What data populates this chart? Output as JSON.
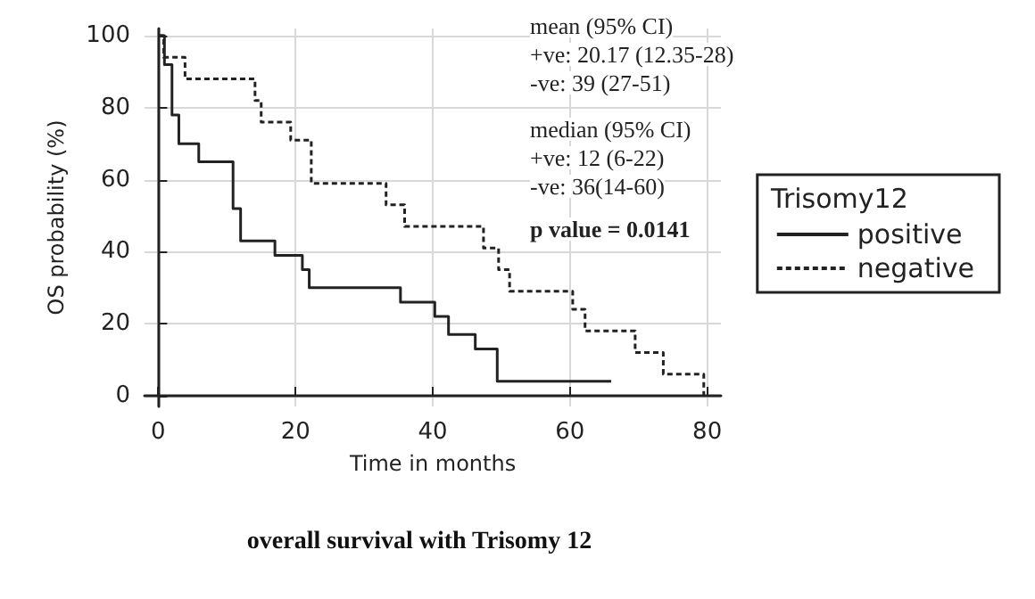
{
  "chart_data": {
    "type": "step",
    "title": "overall survival with Trisomy 12",
    "xlabel": "Time in months",
    "ylabel": "OS probability (%)",
    "legend_title": "Trisomy12",
    "annotations": [
      "mean (95% CI)",
      "+ve: 20.17 (12.35-28)",
      "-ve: 39 (27-51)",
      "median (95% CI)",
      "+ve: 12 (6-22)",
      "-ve: 36(14-60)",
      "p value = 0.0141"
    ],
    "series": [
      {
        "name": "positive",
        "color": "#222222",
        "line_style": "solid",
        "x": [
          0,
          0.9,
          2,
          3,
          5.9,
          10.9,
          12,
          17,
          21,
          22,
          35.3,
          40.3,
          42.3,
          46.2,
          49.4,
          66
        ],
        "values": [
          100,
          92,
          78,
          70,
          65,
          52,
          43,
          39,
          35,
          30,
          26,
          22,
          17,
          13,
          4,
          4
        ]
      },
      {
        "name": "negative",
        "color": "#222222",
        "line_style": "dashed",
        "x": [
          0,
          0.8,
          3.9,
          14.1,
          15,
          19.3,
          22.3,
          33.2,
          35.9,
          47.4,
          49.6,
          51.2,
          60.4,
          62.2,
          69.5,
          73.6,
          79.5
        ],
        "values": [
          100,
          94,
          88,
          82,
          76,
          71,
          59,
          53,
          47,
          41,
          35,
          29,
          24,
          18,
          12,
          6,
          0
        ]
      }
    ],
    "xlim": [
      -2,
      82
    ],
    "xticks": [
      0,
      20,
      40,
      60,
      80
    ],
    "ylim": [
      -3,
      102
    ],
    "yticks": [
      0,
      20,
      40,
      60,
      80,
      100
    ],
    "grid": true,
    "legend": "right",
    "marker": "none"
  }
}
